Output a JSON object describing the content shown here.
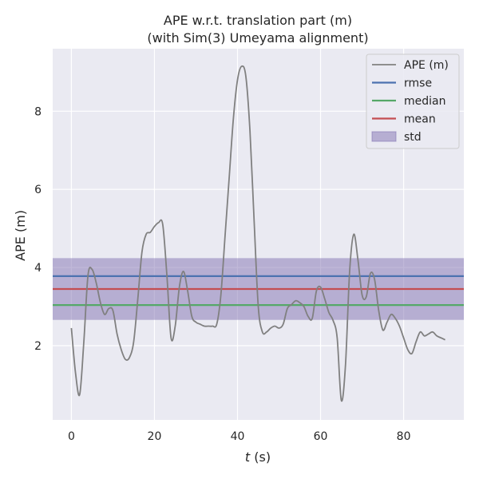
{
  "chart_data": {
    "type": "line",
    "title": "APE w.r.t. translation part (m)",
    "subtitle": "(with Sim(3) Umeyama alignment)",
    "xlabel_italic": "t",
    "xlabel_unit": " (s)",
    "ylabel": "APE (m)",
    "xlim": [
      -4.5,
      94.5
    ],
    "ylim": [
      0.1,
      9.6
    ],
    "xticks": [
      0,
      20,
      40,
      60,
      80
    ],
    "yticks": [
      2,
      4,
      6,
      8
    ],
    "grid": true,
    "legend_position": "top-right",
    "series": [
      {
        "name": "APE (m)",
        "color": "#808080",
        "x": [
          0,
          1,
          2,
          3,
          4,
          5,
          6,
          7,
          8,
          9,
          10,
          11,
          12,
          13,
          14,
          15,
          16,
          17,
          18,
          19,
          20,
          21,
          22,
          23,
          24,
          25,
          26,
          27,
          28,
          29,
          30,
          31,
          32,
          33,
          34,
          35,
          36,
          37,
          38,
          39,
          40,
          41,
          42,
          43,
          44,
          45,
          46,
          47,
          48,
          49,
          50,
          51,
          52,
          53,
          54,
          55,
          56,
          57,
          58,
          59,
          60,
          61,
          62,
          63,
          64,
          65,
          66,
          67,
          68,
          69,
          70,
          71,
          72,
          73,
          74,
          75,
          76,
          77,
          78,
          79,
          80,
          81,
          82,
          83,
          84,
          85,
          86,
          87,
          88,
          89,
          90
        ],
        "y": [
          2.45,
          1.3,
          0.75,
          2.1,
          3.8,
          3.95,
          3.6,
          3.1,
          2.8,
          2.95,
          2.9,
          2.3,
          1.9,
          1.65,
          1.7,
          2.1,
          3.2,
          4.4,
          4.85,
          4.9,
          5.05,
          5.15,
          5.1,
          3.8,
          2.2,
          2.5,
          3.5,
          3.9,
          3.4,
          2.75,
          2.6,
          2.55,
          2.5,
          2.5,
          2.5,
          2.55,
          3.3,
          4.8,
          6.3,
          7.8,
          8.8,
          9.15,
          8.9,
          7.5,
          5.2,
          3.0,
          2.35,
          2.35,
          2.45,
          2.5,
          2.45,
          2.55,
          2.95,
          3.05,
          3.15,
          3.1,
          3.0,
          2.75,
          2.7,
          3.4,
          3.5,
          3.2,
          2.85,
          2.65,
          2.2,
          0.6,
          1.5,
          3.9,
          4.85,
          4.2,
          3.3,
          3.25,
          3.85,
          3.7,
          2.9,
          2.4,
          2.6,
          2.8,
          2.7,
          2.5,
          2.2,
          1.9,
          1.8,
          2.1,
          2.35,
          2.25,
          2.3,
          2.35,
          2.25,
          2.2,
          2.15
        ]
      },
      {
        "name": "rmse",
        "color": "#4c72b0",
        "value": 3.78
      },
      {
        "name": "median",
        "color": "#55a868",
        "value": 3.04
      },
      {
        "name": "mean",
        "color": "#c44e52",
        "value": 3.45
      },
      {
        "name": "std",
        "color": "#8172b2",
        "lower": 2.66,
        "upper": 4.24
      }
    ]
  },
  "colors": {
    "plot_background": "#eaeaf2",
    "grid": "#ffffff"
  }
}
